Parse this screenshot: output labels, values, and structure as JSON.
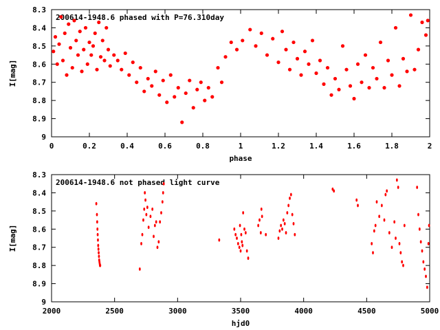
{
  "chart_data": [
    {
      "type": "scatter",
      "title": "200614-1948.6 phased with P=76.310day",
      "xlabel": "phase",
      "ylabel": "I[mag]",
      "xlim": [
        0,
        2
      ],
      "ylim": [
        9.0,
        8.3
      ],
      "xticks": [
        "0",
        "0.2",
        "0.4",
        "0.6",
        "0.8",
        "1",
        "1.2",
        "1.4",
        "1.6",
        "1.8",
        "2"
      ],
      "yticks": [
        "8.3",
        "8.4",
        "8.5",
        "8.6",
        "8.7",
        "8.8",
        "8.9",
        "9"
      ],
      "marker_color": "#ff0000",
      "grid": false,
      "series": [
        {
          "x": [
            0.01,
            0.02,
            0.03,
            0.04,
            0.05,
            0.06,
            0.07,
            0.08,
            0.09,
            0.1,
            0.11,
            0.12,
            0.13,
            0.14,
            0.15,
            0.16,
            0.17,
            0.18,
            0.19,
            0.2,
            0.21,
            0.22,
            0.23,
            0.24,
            0.25,
            0.26,
            0.27,
            0.28,
            0.29,
            0.3,
            0.31,
            0.33,
            0.35,
            0.37,
            0.39,
            0.41,
            0.43,
            0.45,
            0.47,
            0.49,
            0.51,
            0.53,
            0.55,
            0.57,
            0.59,
            0.61,
            0.63,
            0.65,
            0.67,
            0.69,
            0.71,
            0.73,
            0.75,
            0.77,
            0.79,
            0.81,
            0.83,
            0.85,
            0.88,
            0.9,
            0.92,
            0.95,
            0.98,
            1.01,
            1.05,
            1.08,
            1.11,
            1.14,
            1.17,
            1.2,
            1.22,
            1.24,
            1.26,
            1.28,
            1.3,
            1.32,
            1.34,
            1.36,
            1.38,
            1.4,
            1.42,
            1.44,
            1.46,
            1.48,
            1.5,
            1.52,
            1.54,
            1.56,
            1.58,
            1.6,
            1.62,
            1.64,
            1.66,
            1.68,
            1.7,
            1.72,
            1.74,
            1.76,
            1.78,
            1.8,
            1.82,
            1.84,
            1.86,
            1.88,
            1.9,
            1.92,
            1.94,
            1.96,
            1.98,
            1.99
          ],
          "y": [
            8.53,
            8.45,
            8.6,
            8.49,
            8.34,
            8.58,
            8.43,
            8.66,
            8.38,
            8.51,
            8.62,
            8.36,
            8.47,
            8.55,
            8.42,
            8.64,
            8.52,
            8.4,
            8.6,
            8.48,
            8.55,
            8.5,
            8.43,
            8.63,
            8.37,
            8.56,
            8.47,
            8.58,
            8.4,
            8.52,
            8.61,
            8.55,
            8.58,
            8.63,
            8.54,
            8.66,
            8.59,
            8.7,
            8.62,
            8.75,
            8.68,
            8.72,
            8.64,
            8.77,
            8.69,
            8.81,
            8.66,
            8.78,
            8.73,
            8.92,
            8.76,
            8.69,
            8.84,
            8.74,
            8.7,
            8.8,
            8.73,
            8.78,
            8.62,
            8.7,
            8.56,
            8.48,
            8.52,
            8.47,
            8.41,
            8.5,
            8.43,
            8.55,
            8.46,
            8.59,
            8.42,
            8.52,
            8.63,
            8.48,
            8.57,
            8.66,
            8.53,
            8.6,
            8.47,
            8.65,
            8.58,
            8.71,
            8.62,
            8.77,
            8.68,
            8.74,
            8.5,
            8.63,
            8.72,
            8.79,
            8.6,
            8.7,
            8.55,
            8.73,
            8.62,
            8.68,
            8.48,
            8.73,
            8.58,
            8.66,
            8.4,
            8.72,
            8.57,
            8.64,
            8.33,
            8.63,
            8.52,
            8.37,
            8.44,
            8.36
          ]
        }
      ]
    },
    {
      "type": "scatter",
      "title": "200614-1948.6 not phased light curve",
      "xlabel": "hjd0",
      "ylabel": "I[mag]",
      "xlim": [
        2000,
        5000
      ],
      "ylim": [
        9.0,
        8.3
      ],
      "xticks": [
        "2000",
        "2500",
        "3000",
        "3500",
        "4000",
        "4500",
        "5000"
      ],
      "yticks": [
        "8.3",
        "8.4",
        "8.5",
        "8.6",
        "8.7",
        "8.8",
        "8.9",
        "9"
      ],
      "marker_color": "#ff0000",
      "grid": false,
      "series": [
        {
          "x": [
            2355,
            2360,
            2362,
            2364,
            2366,
            2368,
            2370,
            2372,
            2374,
            2376,
            2378,
            2380,
            2382,
            2384,
            2386,
            2700,
            2712,
            2720,
            2728,
            2735,
            2740,
            2745,
            2752,
            2760,
            2770,
            2785,
            2800,
            2810,
            2820,
            2830,
            2840,
            2850,
            2860,
            2870,
            2880,
            2885,
            2890,
            3330,
            3450,
            3460,
            3470,
            3480,
            3490,
            3495,
            3500,
            3505,
            3510,
            3515,
            3520,
            3530,
            3540,
            3550,
            3560,
            3640,
            3650,
            3660,
            3665,
            3670,
            3700,
            3800,
            3810,
            3820,
            3830,
            3840,
            3850,
            3860,
            3870,
            3880,
            3890,
            3900,
            3910,
            3920,
            3930,
            4230,
            4240,
            4420,
            4430,
            4540,
            4550,
            4560,
            4570,
            4580,
            4600,
            4620,
            4640,
            4650,
            4660,
            4680,
            4700,
            4720,
            4730,
            4740,
            4750,
            4760,
            4770,
            4780,
            4790,
            4800,
            4900,
            4910,
            4920,
            4930,
            4940,
            4950,
            4960,
            4970,
            4980,
            4990,
            4995
          ],
          "y": [
            8.46,
            8.52,
            8.56,
            8.6,
            8.63,
            8.66,
            8.69,
            8.71,
            8.73,
            8.75,
            8.77,
            8.78,
            8.79,
            8.8,
            8.8,
            8.82,
            8.68,
            8.63,
            8.55,
            8.49,
            8.4,
            8.44,
            8.52,
            8.48,
            8.59,
            8.53,
            8.49,
            8.64,
            8.58,
            8.56,
            8.7,
            8.67,
            8.56,
            8.51,
            8.45,
            8.4,
            8.35,
            8.66,
            8.6,
            8.63,
            8.65,
            8.68,
            8.7,
            8.58,
            8.72,
            8.63,
            8.67,
            8.69,
            8.51,
            8.6,
            8.62,
            8.72,
            8.76,
            8.58,
            8.55,
            8.62,
            8.49,
            8.53,
            8.63,
            8.65,
            8.61,
            8.58,
            8.6,
            8.55,
            8.57,
            8.62,
            8.51,
            8.47,
            8.43,
            8.41,
            8.52,
            8.57,
            8.63,
            8.38,
            8.39,
            8.44,
            8.47,
            8.68,
            8.73,
            8.61,
            8.58,
            8.45,
            8.53,
            8.47,
            8.55,
            8.41,
            8.39,
            8.62,
            8.7,
            8.56,
            8.65,
            8.33,
            8.37,
            8.68,
            8.73,
            8.78,
            8.8,
            8.58,
            8.37,
            8.52,
            8.6,
            8.67,
            8.72,
            8.78,
            8.82,
            8.86,
            8.92,
            8.68,
            8.58
          ]
        }
      ]
    }
  ]
}
